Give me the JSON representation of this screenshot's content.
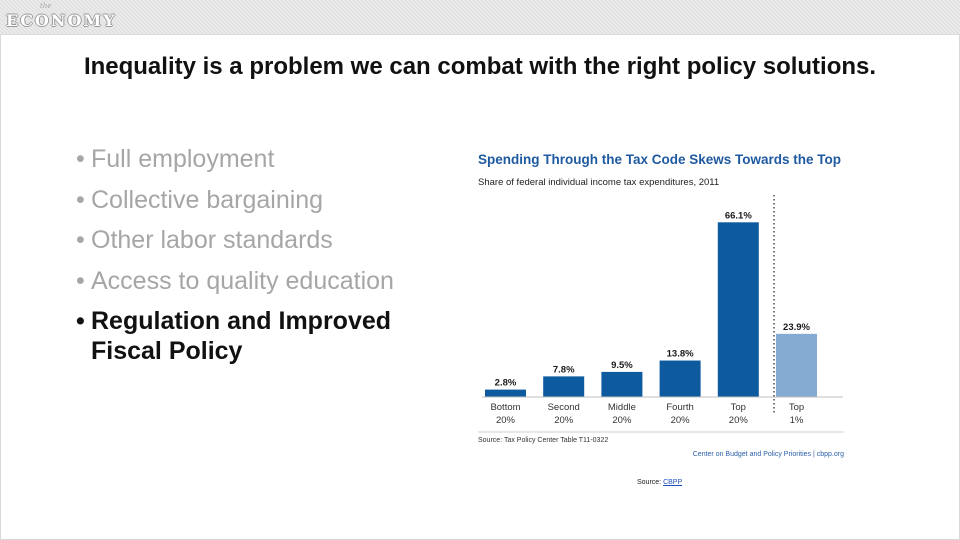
{
  "header": {
    "logo_small": "the",
    "logo_main": "ECONOMY"
  },
  "slide": {
    "title": "Inequality is a problem we can combat with the right policy solutions.",
    "bullets": [
      {
        "text": "Full employment"
      },
      {
        "text": "Collective bargaining"
      },
      {
        "text": "Other labor standards"
      },
      {
        "text": "Access to quality education"
      },
      {
        "text": "Regulation and Improved Fiscal Policy"
      }
    ]
  },
  "chart_data": {
    "type": "bar",
    "title": "Spending Through the Tax Code Skews Towards the Top",
    "subtitle": "Share of federal individual income tax expenditures, 2011",
    "categories": [
      "Bottom 20%",
      "Second 20%",
      "Middle 20%",
      "Fourth 20%",
      "Top 20%",
      "Top 1%"
    ],
    "values": [
      2.8,
      7.8,
      9.5,
      13.8,
      66.1,
      23.9
    ],
    "data_labels": [
      "2.8%",
      "7.8%",
      "9.5%",
      "13.8%",
      "66.1%",
      "23.9%"
    ],
    "ylim": [
      0,
      70
    ],
    "colors": [
      "#0e5a9e",
      "#0e5a9e",
      "#0e5a9e",
      "#0e5a9e",
      "#0e5a9e",
      "#84acd2"
    ],
    "footnote": "Source: Tax Policy Center Table T11-0322",
    "credit": "Center on Budget and Policy Priorities | cbpp.org"
  },
  "source": {
    "label": "Source:",
    "link": "CBPP"
  },
  "colors": {
    "title_color": "#1f5aa0",
    "bar_color": "#0e5a9e",
    "highlight_bar": "#84acd2"
  }
}
